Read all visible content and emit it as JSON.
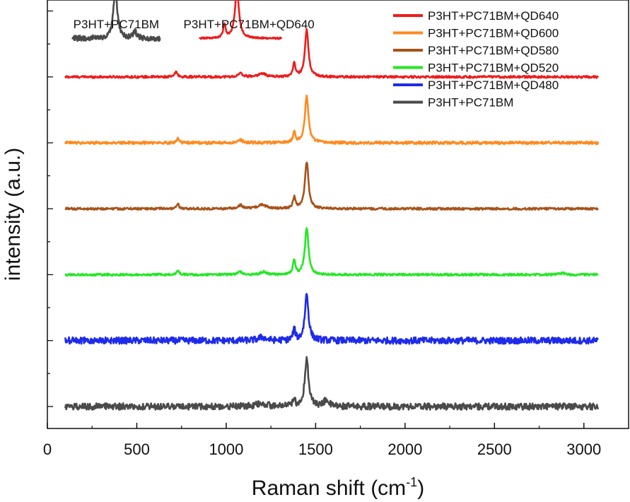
{
  "chart_data": {
    "type": "line",
    "xlabel": "Raman shift (cm",
    "xlabel_sup": "-1",
    "xlabel_end": ")",
    "ylabel": "intensity (a.u.)",
    "xlim": [
      0,
      3250
    ],
    "xticks": [
      0,
      500,
      1000,
      1500,
      2000,
      2500,
      3000
    ],
    "xtick_labels": [
      "0",
      "500",
      "1000",
      "1500",
      "2000",
      "2500",
      "3000"
    ],
    "y_ticklabels_shown": false,
    "legend_position": "top-right",
    "series": [
      {
        "name": "P3HT+PC71BM+QD640",
        "color": "#ee1c1c",
        "offset": 6.4,
        "peaks": [
          [
            720,
            0.1,
            8
          ],
          [
            1080,
            0.06,
            15
          ],
          [
            1200,
            0.06,
            25
          ],
          [
            1380,
            0.25,
            8
          ],
          [
            1450,
            0.85,
            12
          ]
        ],
        "noise": 0.02
      },
      {
        "name": "P3HT+PC71BM+QD600",
        "color": "#ff8a1f",
        "offset": 5.2,
        "peaks": [
          [
            730,
            0.08,
            8
          ],
          [
            1080,
            0.05,
            15
          ],
          [
            1380,
            0.2,
            8
          ],
          [
            1450,
            0.85,
            12
          ]
        ],
        "noise": 0.025
      },
      {
        "name": "P3HT+PC71BM+QD580",
        "color": "#a8521a",
        "offset": 4.0,
        "peaks": [
          [
            730,
            0.08,
            8
          ],
          [
            1080,
            0.06,
            15
          ],
          [
            1200,
            0.07,
            30
          ],
          [
            1380,
            0.2,
            8
          ],
          [
            1450,
            0.85,
            12
          ]
        ],
        "noise": 0.02
      },
      {
        "name": "P3HT+PC71BM+QD520",
        "color": "#22e822",
        "offset": 2.8,
        "peaks": [
          [
            730,
            0.08,
            8
          ],
          [
            1080,
            0.05,
            15
          ],
          [
            1210,
            0.05,
            20
          ],
          [
            1380,
            0.25,
            8
          ],
          [
            1450,
            0.85,
            12
          ],
          [
            2880,
            0.03,
            20
          ]
        ],
        "noise": 0.02
      },
      {
        "name": "P3HT+PC71BM+QD480",
        "color": "#1e2bea",
        "offset": 1.6,
        "peaks": [
          [
            1200,
            0.06,
            25
          ],
          [
            1380,
            0.2,
            8
          ],
          [
            1450,
            0.85,
            12
          ]
        ],
        "noise": 0.06
      },
      {
        "name": "P3HT+PC71BM",
        "color": "#4a4a4a",
        "offset": 0.4,
        "peaks": [
          [
            1200,
            0.06,
            30
          ],
          [
            1380,
            0.12,
            8
          ],
          [
            1450,
            0.9,
            12
          ],
          [
            1560,
            0.12,
            15
          ]
        ],
        "noise": 0.06
      }
    ],
    "insets": [
      {
        "label": "P3HT+PC71BM",
        "color": "#4a4a4a",
        "x_range": [
          140,
          630
        ],
        "baseline": 7.1,
        "peaks": [
          [
            380,
            0.85,
            14
          ],
          [
            490,
            0.12,
            10
          ]
        ],
        "noise": 0.05
      },
      {
        "label": "P3HT+PC71BM+QD640",
        "color": "#ee1c1c",
        "x_range": [
          850,
          1310
        ],
        "baseline": 7.1,
        "peaks": [
          [
            990,
            0.25,
            8
          ],
          [
            1060,
            0.85,
            14
          ]
        ],
        "noise": 0.015
      }
    ]
  }
}
